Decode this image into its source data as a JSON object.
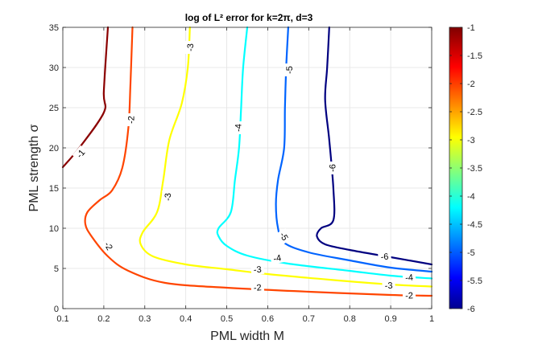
{
  "chart_data": {
    "type": "contour",
    "title": "log of L² error for k=2π, d=3",
    "xlabel": "PML width M",
    "ylabel": "PML strength σ",
    "xlim": [
      0.1,
      1
    ],
    "ylim": [
      0,
      35
    ],
    "xticks": [
      0.1,
      0.2,
      0.3,
      0.4,
      0.5,
      0.6,
      0.7,
      0.8,
      0.9,
      1
    ],
    "xtick_labels": [
      "0.1",
      "0.2",
      "0.3",
      "0.4",
      "0.5",
      "0.6",
      "0.7",
      "0.8",
      "0.9",
      "1"
    ],
    "yticks": [
      0,
      5,
      10,
      15,
      20,
      25,
      30,
      35
    ],
    "ytick_labels": [
      "0",
      "5",
      "10",
      "15",
      "20",
      "25",
      "30",
      "35"
    ],
    "grid": true,
    "colorbar": {
      "position": "right",
      "colormap": "jet",
      "range": [
        -6,
        -1
      ],
      "ticks": [
        -1,
        -1.5,
        -2,
        -2.5,
        -3,
        -3.5,
        -4,
        -4.5,
        -5,
        -5.5,
        -6
      ],
      "tick_labels": [
        "-1",
        "-1.5",
        "-2",
        "-2.5",
        "-3",
        "-3.5",
        "-4",
        "-4.5",
        "-5",
        "-5.5",
        "-6"
      ]
    },
    "levels": [
      {
        "level": -1,
        "label": "-1",
        "color": "#8b0000",
        "points": [
          [
            0.1,
            17.6
          ],
          [
            0.14,
            20.0
          ],
          [
            0.2,
            24.4
          ],
          [
            0.2,
            27.0
          ],
          [
            0.21,
            35.0
          ]
        ],
        "labels": [
          {
            "x": 0.143,
            "y": 19.3,
            "angle": -50
          }
        ]
      },
      {
        "level": -2,
        "label": "-2",
        "color": "#ff4500",
        "points": [
          [
            0.27,
            35.0
          ],
          [
            0.265,
            28.0
          ],
          [
            0.26,
            22.5
          ],
          [
            0.245,
            17.5
          ],
          [
            0.22,
            14.7
          ],
          [
            0.19,
            13.5
          ],
          [
            0.16,
            12.0
          ],
          [
            0.155,
            10.5
          ],
          [
            0.17,
            9.0
          ],
          [
            0.21,
            6.5
          ],
          [
            0.26,
            4.7
          ],
          [
            0.35,
            3.2
          ],
          [
            0.5,
            2.6
          ],
          [
            0.7,
            2.1
          ],
          [
            0.9,
            1.7
          ],
          [
            1.0,
            1.6
          ]
        ],
        "labels": [
          {
            "x": 0.266,
            "y": 23.5,
            "angle": -90
          },
          {
            "x": 0.212,
            "y": 7.8,
            "angle": 60
          },
          {
            "x": 0.575,
            "y": 2.65,
            "angle": -5
          },
          {
            "x": 0.945,
            "y": 1.65,
            "angle": -3
          }
        ]
      },
      {
        "level": -3,
        "label": "-3",
        "color": "#ffff00",
        "points": [
          [
            0.41,
            35.0
          ],
          [
            0.405,
            30.0
          ],
          [
            0.39,
            25.5
          ],
          [
            0.36,
            21.0
          ],
          [
            0.345,
            16.0
          ],
          [
            0.33,
            12.0
          ],
          [
            0.295,
            9.5
          ],
          [
            0.29,
            8.0
          ],
          [
            0.32,
            6.5
          ],
          [
            0.4,
            5.5
          ],
          [
            0.5,
            4.9
          ],
          [
            0.6,
            4.3
          ],
          [
            0.75,
            3.6
          ],
          [
            0.9,
            3.0
          ],
          [
            1.0,
            2.75
          ]
        ],
        "labels": [
          {
            "x": 0.41,
            "y": 32.5,
            "angle": -90
          },
          {
            "x": 0.355,
            "y": 13.9,
            "angle": -90
          },
          {
            "x": 0.575,
            "y": 4.9,
            "angle": -5
          },
          {
            "x": 0.895,
            "y": 2.9,
            "angle": -3
          }
        ]
      },
      {
        "level": -4,
        "label": "-4",
        "color": "#00ffff",
        "points": [
          [
            0.55,
            35.0
          ],
          [
            0.54,
            30.0
          ],
          [
            0.535,
            25.0
          ],
          [
            0.53,
            20.0
          ],
          [
            0.52,
            16.0
          ],
          [
            0.51,
            12.0
          ],
          [
            0.48,
            10.0
          ],
          [
            0.48,
            9.0
          ],
          [
            0.5,
            7.8
          ],
          [
            0.55,
            6.6
          ],
          [
            0.65,
            5.6
          ],
          [
            0.8,
            4.7
          ],
          [
            0.9,
            4.1
          ],
          [
            1.0,
            3.75
          ]
        ],
        "labels": [
          {
            "x": 0.527,
            "y": 22.5,
            "angle": -90
          },
          {
            "x": 0.623,
            "y": 6.3,
            "angle": -10
          },
          {
            "x": 0.945,
            "y": 3.9,
            "angle": -5
          }
        ]
      },
      {
        "level": -5,
        "label": "-5",
        "color": "#0064ff",
        "points": [
          [
            0.65,
            35.0
          ],
          [
            0.645,
            30.0
          ],
          [
            0.642,
            25.0
          ],
          [
            0.64,
            20.0
          ],
          [
            0.625,
            16.0
          ],
          [
            0.62,
            13.0
          ],
          [
            0.625,
            10.0
          ],
          [
            0.64,
            8.2
          ],
          [
            0.7,
            7.0
          ],
          [
            0.8,
            6.0
          ],
          [
            0.9,
            5.1
          ],
          [
            1.0,
            4.6
          ]
        ],
        "labels": [
          {
            "x": 0.652,
            "y": 29.7,
            "angle": -90
          },
          {
            "x": 0.64,
            "y": 9.0,
            "angle": 60
          }
        ]
      },
      {
        "level": -6,
        "label": "-6",
        "color": "#000080",
        "points": [
          [
            0.75,
            35.0
          ],
          [
            0.745,
            30.0
          ],
          [
            0.74,
            26.0
          ],
          [
            0.75,
            21.0
          ],
          [
            0.76,
            15.0
          ],
          [
            0.76,
            11.0
          ],
          [
            0.73,
            10.0
          ],
          [
            0.72,
            9.0
          ],
          [
            0.74,
            8.0
          ],
          [
            0.8,
            7.3
          ],
          [
            0.9,
            6.4
          ],
          [
            1.0,
            5.5
          ]
        ],
        "labels": [
          {
            "x": 0.757,
            "y": 17.5,
            "angle": -90
          },
          {
            "x": 0.885,
            "y": 6.5,
            "angle": -5
          }
        ]
      }
    ]
  }
}
